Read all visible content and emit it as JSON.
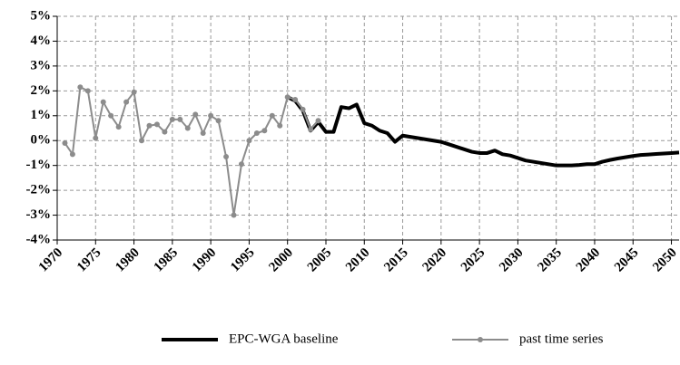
{
  "chart_data": {
    "type": "line",
    "xlim": [
      1970,
      2051
    ],
    "xticks": [
      1970,
      1975,
      1980,
      1985,
      1990,
      1995,
      2000,
      2005,
      2010,
      2015,
      2020,
      2025,
      2030,
      2035,
      2040,
      2045,
      2050
    ],
    "ylim": [
      -4,
      5
    ],
    "yticks": [
      {
        "value": 5,
        "label": "5%"
      },
      {
        "value": 4,
        "label": "4%"
      },
      {
        "value": 3,
        "label": "3%"
      },
      {
        "value": 2,
        "label": "2%"
      },
      {
        "value": 1,
        "label": "1%"
      },
      {
        "value": 0,
        "label": "0%"
      },
      {
        "value": -1,
        "label": "-1%"
      },
      {
        "value": -2,
        "label": "-2%"
      },
      {
        "value": -3,
        "label": "-3%"
      },
      {
        "value": -4,
        "label": "-4%"
      }
    ],
    "grid": true,
    "legend": "bottom",
    "series": [
      {
        "name": "EPC-WGA baseline",
        "color": "#000000",
        "markers": false,
        "x": [
          2000,
          2001,
          2002,
          2003,
          2004,
          2005,
          2006,
          2007,
          2008,
          2009,
          2010,
          2011,
          2012,
          2013,
          2014,
          2015,
          2016,
          2017,
          2018,
          2019,
          2020,
          2021,
          2022,
          2023,
          2024,
          2025,
          2026,
          2027,
          2028,
          2029,
          2030,
          2031,
          2032,
          2033,
          2034,
          2035,
          2036,
          2037,
          2038,
          2039,
          2040,
          2041,
          2042,
          2043,
          2044,
          2045,
          2046,
          2047,
          2048,
          2049,
          2050,
          2051
        ],
        "values": [
          1.75,
          1.6,
          1.2,
          0.4,
          0.75,
          0.35,
          0.35,
          1.35,
          1.3,
          1.45,
          0.7,
          0.6,
          0.4,
          0.3,
          -0.05,
          0.2,
          0.15,
          0.1,
          0.05,
          0,
          -0.05,
          -0.15,
          -0.25,
          -0.35,
          -0.45,
          -0.5,
          -0.5,
          -0.4,
          -0.55,
          -0.6,
          -0.7,
          -0.8,
          -0.85,
          -0.9,
          -0.95,
          -1.0,
          -1.0,
          -1.0,
          -0.98,
          -0.95,
          -0.95,
          -0.85,
          -0.78,
          -0.72,
          -0.67,
          -0.62,
          -0.58,
          -0.56,
          -0.54,
          -0.52,
          -0.5,
          -0.48
        ]
      },
      {
        "name": "past time series",
        "color": "#8c8c8c",
        "markers": true,
        "x": [
          1971,
          1972,
          1973,
          1974,
          1975,
          1976,
          1977,
          1978,
          1979,
          1980,
          1981,
          1982,
          1983,
          1984,
          1985,
          1986,
          1987,
          1988,
          1989,
          1990,
          1991,
          1992,
          1993,
          1994,
          1995,
          1996,
          1997,
          1998,
          1999,
          2000,
          2001,
          2002,
          2003,
          2004
        ],
        "values": [
          -0.1,
          -0.55,
          2.15,
          2.0,
          0.1,
          1.55,
          1.0,
          0.55,
          1.55,
          1.95,
          0,
          0.6,
          0.65,
          0.35,
          0.85,
          0.85,
          0.5,
          1.05,
          0.3,
          1.0,
          0.8,
          -0.65,
          -3.0,
          -0.95,
          0,
          0.3,
          0.4,
          1.0,
          0.6,
          1.75,
          1.65,
          1.25,
          0.45,
          0.8
        ]
      }
    ]
  }
}
